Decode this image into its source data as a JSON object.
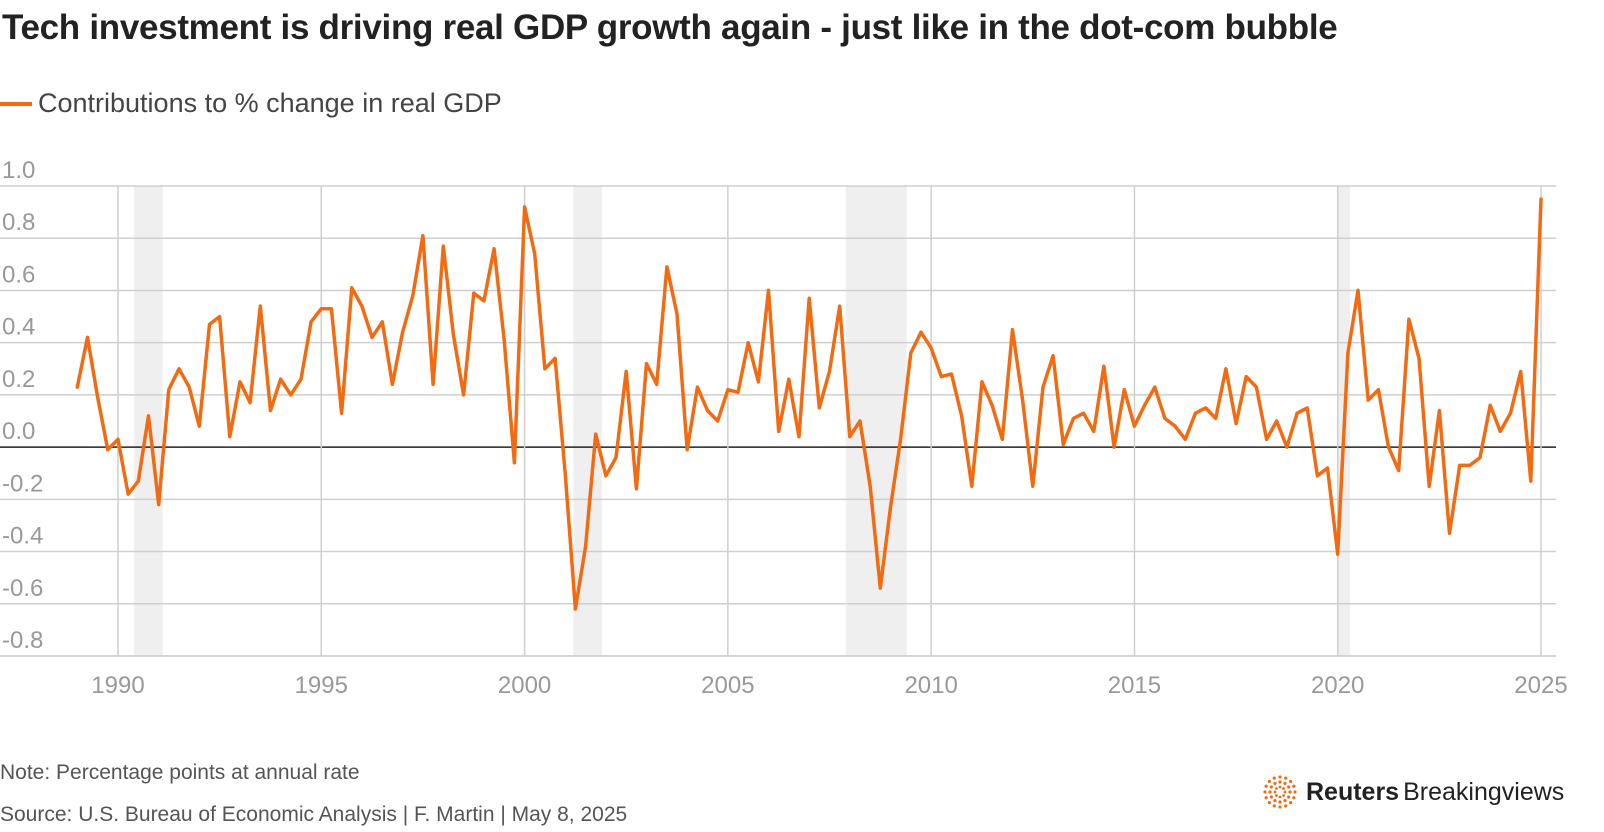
{
  "title": "Tech investment is driving real GDP growth again - just like in the dot-com bubble",
  "legend": {
    "label": "Contributions to % change in real GDP",
    "color": "#f26b12"
  },
  "note": "Note: Percentage points at annual rate",
  "source": "Source: U.S. Bureau of Economic Analysis | F. Martin | May 8, 2025",
  "brand": {
    "name_bold": "Reuters",
    "name_light": "Breakingviews",
    "icon": "reuters-dots-logo"
  },
  "chart_data": {
    "type": "line",
    "title": "Tech investment is driving real GDP growth again - just like in the dot-com bubble",
    "xlabel": "",
    "ylabel": "",
    "xlim": [
      1988.6,
      2025.5
    ],
    "ylim": [
      -0.8,
      1.0
    ],
    "yticks": [
      1.0,
      0.8,
      0.6,
      0.4,
      0.2,
      0.0,
      -0.2,
      -0.4,
      -0.6,
      -0.8
    ],
    "ytick_labels": [
      "1.0",
      "0.8",
      "0.6",
      "0.4",
      "0.2",
      "0.0",
      "-0.2",
      "-0.4",
      "-0.6",
      "-0.8"
    ],
    "xticks": [
      1990,
      1995,
      2000,
      2005,
      2010,
      2015,
      2020,
      2025
    ],
    "xtick_labels": [
      "1990",
      "1995",
      "2000",
      "2005",
      "2010",
      "2015",
      "2020",
      "2025"
    ],
    "grid": true,
    "recession_bands": [
      [
        1990.4,
        1991.1
      ],
      [
        2001.2,
        2001.9
      ],
      [
        2007.9,
        2009.4
      ],
      [
        2020.0,
        2020.3
      ]
    ],
    "series": [
      {
        "name": "Contributions to % change in real GDP",
        "x_start": 1989.0,
        "step": 0.25,
        "values": [
          0.23,
          0.42,
          0.19,
          -0.01,
          0.03,
          -0.18,
          -0.13,
          0.12,
          -0.22,
          0.22,
          0.3,
          0.23,
          0.08,
          0.47,
          0.5,
          0.04,
          0.25,
          0.17,
          0.54,
          0.14,
          0.26,
          0.2,
          0.26,
          0.48,
          0.53,
          0.53,
          0.13,
          0.61,
          0.54,
          0.42,
          0.48,
          0.24,
          0.44,
          0.58,
          0.81,
          0.24,
          0.77,
          0.43,
          0.2,
          0.59,
          0.56,
          0.76,
          0.41,
          -0.06,
          0.92,
          0.74,
          0.3,
          0.34,
          -0.1,
          -0.62,
          -0.38,
          0.05,
          -0.11,
          -0.04,
          0.29,
          -0.16,
          0.32,
          0.24,
          0.69,
          0.51,
          -0.01,
          0.23,
          0.14,
          0.1,
          0.22,
          0.21,
          0.4,
          0.25,
          0.6,
          0.06,
          0.26,
          0.04,
          0.57,
          0.15,
          0.29,
          0.54,
          0.04,
          0.1,
          -0.15,
          -0.54,
          -0.23,
          0.03,
          0.36,
          0.44,
          0.38,
          0.27,
          0.28,
          0.12,
          -0.15,
          0.25,
          0.16,
          0.03,
          0.45,
          0.18,
          -0.15,
          0.23,
          0.35,
          0.01,
          0.11,
          0.13,
          0.06,
          0.31,
          0.0,
          0.22,
          0.08,
          0.16,
          0.23,
          0.11,
          0.08,
          0.03,
          0.13,
          0.15,
          0.11,
          0.3,
          0.09,
          0.27,
          0.23,
          0.03,
          0.1,
          0.0,
          0.13,
          0.15,
          -0.11,
          -0.08,
          -0.41,
          0.36,
          0.6,
          0.18,
          0.22,
          0.0,
          -0.09,
          0.49,
          0.34,
          -0.15,
          0.14,
          -0.33,
          -0.07,
          -0.07,
          -0.04,
          0.16,
          0.06,
          0.13,
          0.29,
          -0.13,
          0.95
        ]
      }
    ]
  }
}
